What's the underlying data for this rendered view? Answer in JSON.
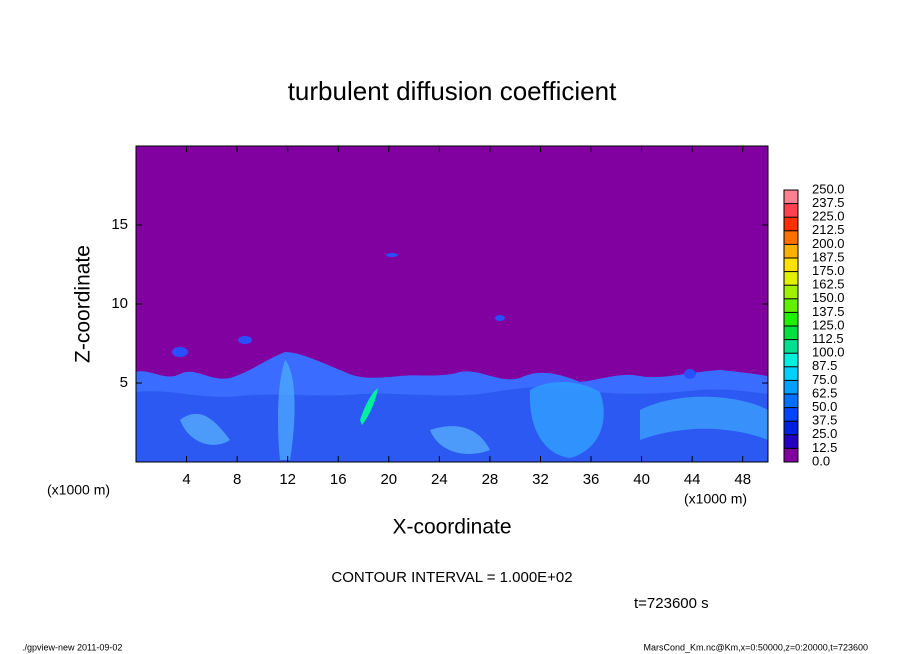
{
  "chart_data": {
    "type": "contour",
    "title": "turbulent diffusion coefficient",
    "xlabel": "X-coordinate",
    "ylabel": "Z-coordinate",
    "x_unit": "(x1000 m)",
    "y_unit": "(x1000 m)",
    "xlim": [
      0,
      50
    ],
    "xticks": [
      4,
      8,
      12,
      16,
      20,
      24,
      28,
      32,
      36,
      40,
      44,
      48
    ],
    "ylim": [
      0,
      20
    ],
    "yticks": [
      5,
      10,
      15
    ],
    "colorbar": {
      "levels": [
        {
          "value": 0,
          "label": "0.0"
        },
        12.5,
        {
          "value": 25,
          "label": "25.0"
        },
        37.5,
        {
          "value": 50,
          "label": "50.0"
        },
        62.5,
        {
          "value": 75,
          "label": "75.0"
        },
        87.5,
        {
          "value": 100,
          "label": "100.0"
        },
        112.5,
        {
          "value": 125,
          "label": "125.0"
        },
        137.5,
        {
          "value": 150,
          "label": "150.0"
        },
        162.5,
        {
          "value": 175,
          "label": "175.0"
        },
        187.5,
        {
          "value": 200,
          "label": "200.0"
        },
        212.5,
        {
          "value": 225,
          "label": "225.0"
        },
        237.5,
        {
          "value": 250,
          "label": "250.0"
        }
      ],
      "colors": [
        "#8000a0",
        "#2400c0",
        "#0020e0",
        "#0044ff",
        "#0070ff",
        "#00a0ff",
        "#00d0ff",
        "#00f0e0",
        "#00e090",
        "#00e040",
        "#20f000",
        "#60f000",
        "#a0f000",
        "#e0f000",
        "#ffe000",
        "#ffb000",
        "#ff7000",
        "#ff3000",
        "#ff4050",
        "#ff8090"
      ]
    },
    "annotation": "CONTOUR INTERVAL = 1.000E+02",
    "time_label": "t=723600 s",
    "footer_left": "./gpview-new   2011-09-02",
    "footer_right": "MarsCond_Km.nc@Km,x=0:50000,z=0:20000,t=723600"
  }
}
